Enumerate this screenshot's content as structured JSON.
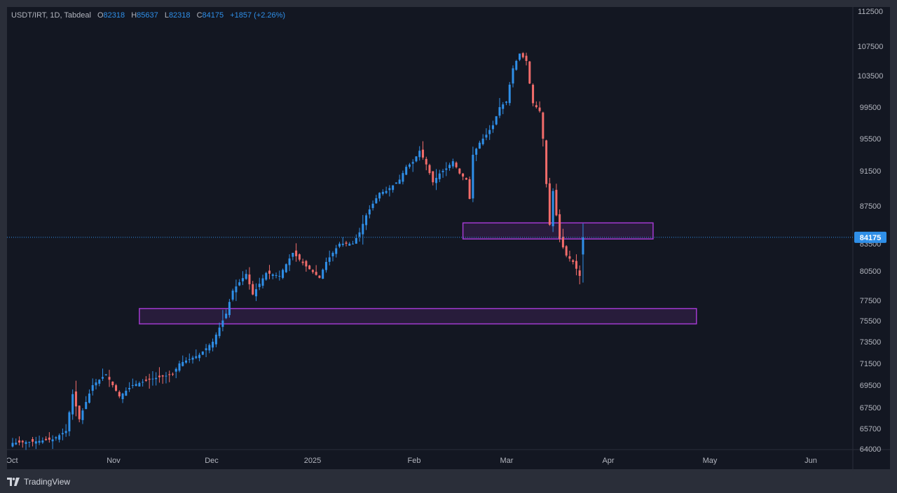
{
  "legend": {
    "symbol": "USDT/IRT, 1D, Tabdeal",
    "o_label": "O",
    "o_value": "82318",
    "h_label": "H",
    "h_value": "85637",
    "l_label": "L",
    "l_value": "82318",
    "c_label": "C",
    "c_value": "84175",
    "change": "+1857 (+2.26%)"
  },
  "branding": {
    "name": "TradingView",
    "icon": "tradingview-logo-icon"
  },
  "colors": {
    "background": "#131722",
    "up": "#2f8fe8",
    "down": "#f26c6a",
    "zone": "#a33ad1",
    "last_price_bg": "#2f8fe8",
    "last_price_line": "#2f8fe8"
  },
  "chart_data": {
    "type": "candlestick",
    "title": "USDT/IRT, 1D, Tabdeal",
    "ylim": [
      64000,
      112500
    ],
    "y_ticks": [
      112500,
      107500,
      103500,
      99500,
      95500,
      91500,
      87500,
      83500,
      80500,
      77500,
      75500,
      73500,
      71500,
      69500,
      67500,
      65700,
      64000
    ],
    "x_ticks": [
      "Oct",
      "Nov",
      "Dec",
      "2025",
      "Feb",
      "Mar",
      "Apr",
      "May",
      "Jun"
    ],
    "last_price": 84175,
    "last_price_label": "84175",
    "zones": [
      {
        "name": "resistance-zone",
        "top": 85700,
        "bottom": 84000,
        "start_index": 135,
        "end_index": 192
      },
      {
        "name": "support-zone",
        "top": 76700,
        "bottom": 75200,
        "start_index": 38,
        "end_index": 205
      }
    ],
    "anchors": [
      [
        0,
        64500
      ],
      [
        6,
        64600
      ],
      [
        12,
        64800
      ],
      [
        16,
        65500
      ],
      [
        18,
        68700
      ],
      [
        20,
        66500
      ],
      [
        24,
        69500
      ],
      [
        28,
        70500
      ],
      [
        32,
        68500
      ],
      [
        36,
        69500
      ],
      [
        42,
        70100
      ],
      [
        48,
        70500
      ],
      [
        50,
        71500
      ],
      [
        56,
        72300
      ],
      [
        60,
        73500
      ],
      [
        64,
        76200
      ],
      [
        66,
        78500
      ],
      [
        70,
        80200
      ],
      [
        72,
        78100
      ],
      [
        76,
        80300
      ],
      [
        80,
        80000
      ],
      [
        84,
        82500
      ],
      [
        88,
        81000
      ],
      [
        92,
        79800
      ],
      [
        94,
        81500
      ],
      [
        98,
        83500
      ],
      [
        102,
        83500
      ],
      [
        104,
        84700
      ],
      [
        106,
        86500
      ],
      [
        110,
        89000
      ],
      [
        112,
        89200
      ],
      [
        116,
        90500
      ],
      [
        118,
        92000
      ],
      [
        120,
        92600
      ],
      [
        122,
        94000
      ],
      [
        124,
        92300
      ],
      [
        126,
        90200
      ],
      [
        128,
        91200
      ],
      [
        130,
        91800
      ],
      [
        132,
        92700
      ],
      [
        134,
        91200
      ],
      [
        136,
        90500
      ],
      [
        137,
        88300
      ],
      [
        138,
        93500
      ],
      [
        140,
        95000
      ],
      [
        142,
        96000
      ],
      [
        144,
        97200
      ],
      [
        146,
        99500
      ],
      [
        148,
        100200
      ],
      [
        150,
        104500
      ],
      [
        152,
        106500
      ],
      [
        154,
        105500
      ],
      [
        155,
        102500
      ],
      [
        156,
        100000
      ],
      [
        158,
        99000
      ],
      [
        159,
        95500
      ],
      [
        160,
        90000
      ],
      [
        161,
        85500
      ],
      [
        162,
        89200
      ],
      [
        163,
        86500
      ],
      [
        164,
        84000
      ],
      [
        166,
        82200
      ],
      [
        168,
        81500
      ],
      [
        170,
        80000
      ],
      [
        171,
        84175
      ]
    ]
  }
}
